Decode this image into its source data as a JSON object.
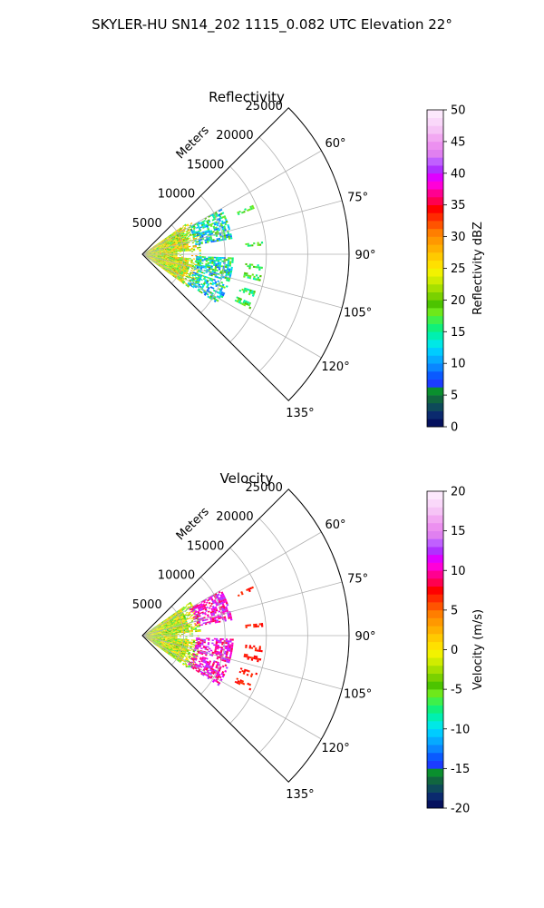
{
  "suptitle": "SKYLER-HU  SN14_202  1115_0.082 UTC Elevation 22°",
  "chart_data": [
    {
      "type": "heatmap",
      "title": "Reflectivity",
      "projection": "polar-sector",
      "theta_range_deg": [
        45,
        135
      ],
      "r_range": [
        0,
        25000
      ],
      "r_label": "Meters",
      "r_ticks": [
        "5000",
        "10000",
        "15000",
        "20000",
        "25000"
      ],
      "theta_ticks": [
        "60°",
        "75°",
        "90°",
        "105°",
        "120°",
        "135°"
      ],
      "grid": true,
      "colorbar": {
        "label": "Reflectivity dBZ",
        "range": [
          0,
          50
        ],
        "ticks": [
          "0",
          "5",
          "10",
          "15",
          "20",
          "25",
          "30",
          "35",
          "40",
          "45",
          "50"
        ],
        "colors": [
          "#05115e",
          "#0b2a6e",
          "#0e4a5a",
          "#11663f",
          "#0a8f2e",
          "#1c3cff",
          "#0a5aff",
          "#0a86ff",
          "#06aaff",
          "#00ccff",
          "#00e8e6",
          "#00f0b0",
          "#10f07a",
          "#3ef04a",
          "#6ee81a",
          "#4cc400",
          "#7ad100",
          "#a6e000",
          "#d0ec00",
          "#f2f200",
          "#ffe000",
          "#ffca00",
          "#ffb000",
          "#ff9800",
          "#ff7e00",
          "#ff5400",
          "#ff2a00",
          "#ff0000",
          "#ff0050",
          "#ff0090",
          "#ff00d8",
          "#e000ff",
          "#b030ff",
          "#c060ff",
          "#e080f0",
          "#ec90f0",
          "#f2a8f2",
          "#f6c4f6",
          "#fad8fa",
          "#fce8fc"
        ]
      },
      "echo": {
        "core_r": [
          0,
          7000
        ],
        "core_theta": [
          55,
          125
        ],
        "core_values": [
          16,
          30
        ],
        "outer_band_r": [
          6500,
          11000
        ],
        "outer_band_values": [
          8,
          20
        ],
        "outer_theta_segments": [
          [
            60,
            80
          ],
          [
            92,
            107
          ],
          [
            109,
            123
          ]
        ],
        "speckle_r": [
          12500,
          14500
        ],
        "speckle_values": [
          14,
          20
        ]
      }
    },
    {
      "type": "heatmap",
      "title": "Velocity",
      "projection": "polar-sector",
      "theta_range_deg": [
        45,
        135
      ],
      "r_range": [
        0,
        25000
      ],
      "r_label": "Meters",
      "r_ticks": [
        "5000",
        "10000",
        "15000",
        "20000",
        "25000"
      ],
      "theta_ticks": [
        "60°",
        "75°",
        "90°",
        "105°",
        "120°",
        "135°"
      ],
      "grid": true,
      "colorbar": {
        "label": "Velocity (m/s)",
        "range": [
          -20,
          20
        ],
        "ticks": [
          "-20",
          "-15",
          "-10",
          "-5",
          "0",
          "5",
          "10",
          "15",
          "20"
        ],
        "colors": [
          "#05115e",
          "#0b2a6e",
          "#0e4a5a",
          "#11663f",
          "#0a8f2e",
          "#1c3cff",
          "#0a5aff",
          "#0a86ff",
          "#06aaff",
          "#00ccff",
          "#00e8e6",
          "#00f0b0",
          "#10f07a",
          "#3ef04a",
          "#6ee81a",
          "#4cc400",
          "#7ad100",
          "#a6e000",
          "#d0ec00",
          "#f2f200",
          "#ffe000",
          "#ffca00",
          "#ffb000",
          "#ff9800",
          "#ff7e00",
          "#ff5400",
          "#ff2a00",
          "#ff0000",
          "#ff0050",
          "#ff0090",
          "#ff00d8",
          "#e000ff",
          "#b030ff",
          "#c060ff",
          "#e080f0",
          "#ec90f0",
          "#f2a8f2",
          "#f6c4f6",
          "#fad8fa",
          "#fce8fc"
        ]
      },
      "echo": {
        "core_r": [
          0,
          7000
        ],
        "core_theta": [
          55,
          125
        ],
        "core_values": [
          -7,
          3
        ],
        "outer_band_r": [
          6500,
          11000
        ],
        "outer_band_values": [
          8,
          13
        ],
        "outer_theta_segments": [
          [
            60,
            80
          ],
          [
            92,
            107
          ],
          [
            109,
            123
          ]
        ],
        "speckle_r": [
          12500,
          14500
        ],
        "speckle_values": [
          6,
          8
        ]
      }
    }
  ]
}
